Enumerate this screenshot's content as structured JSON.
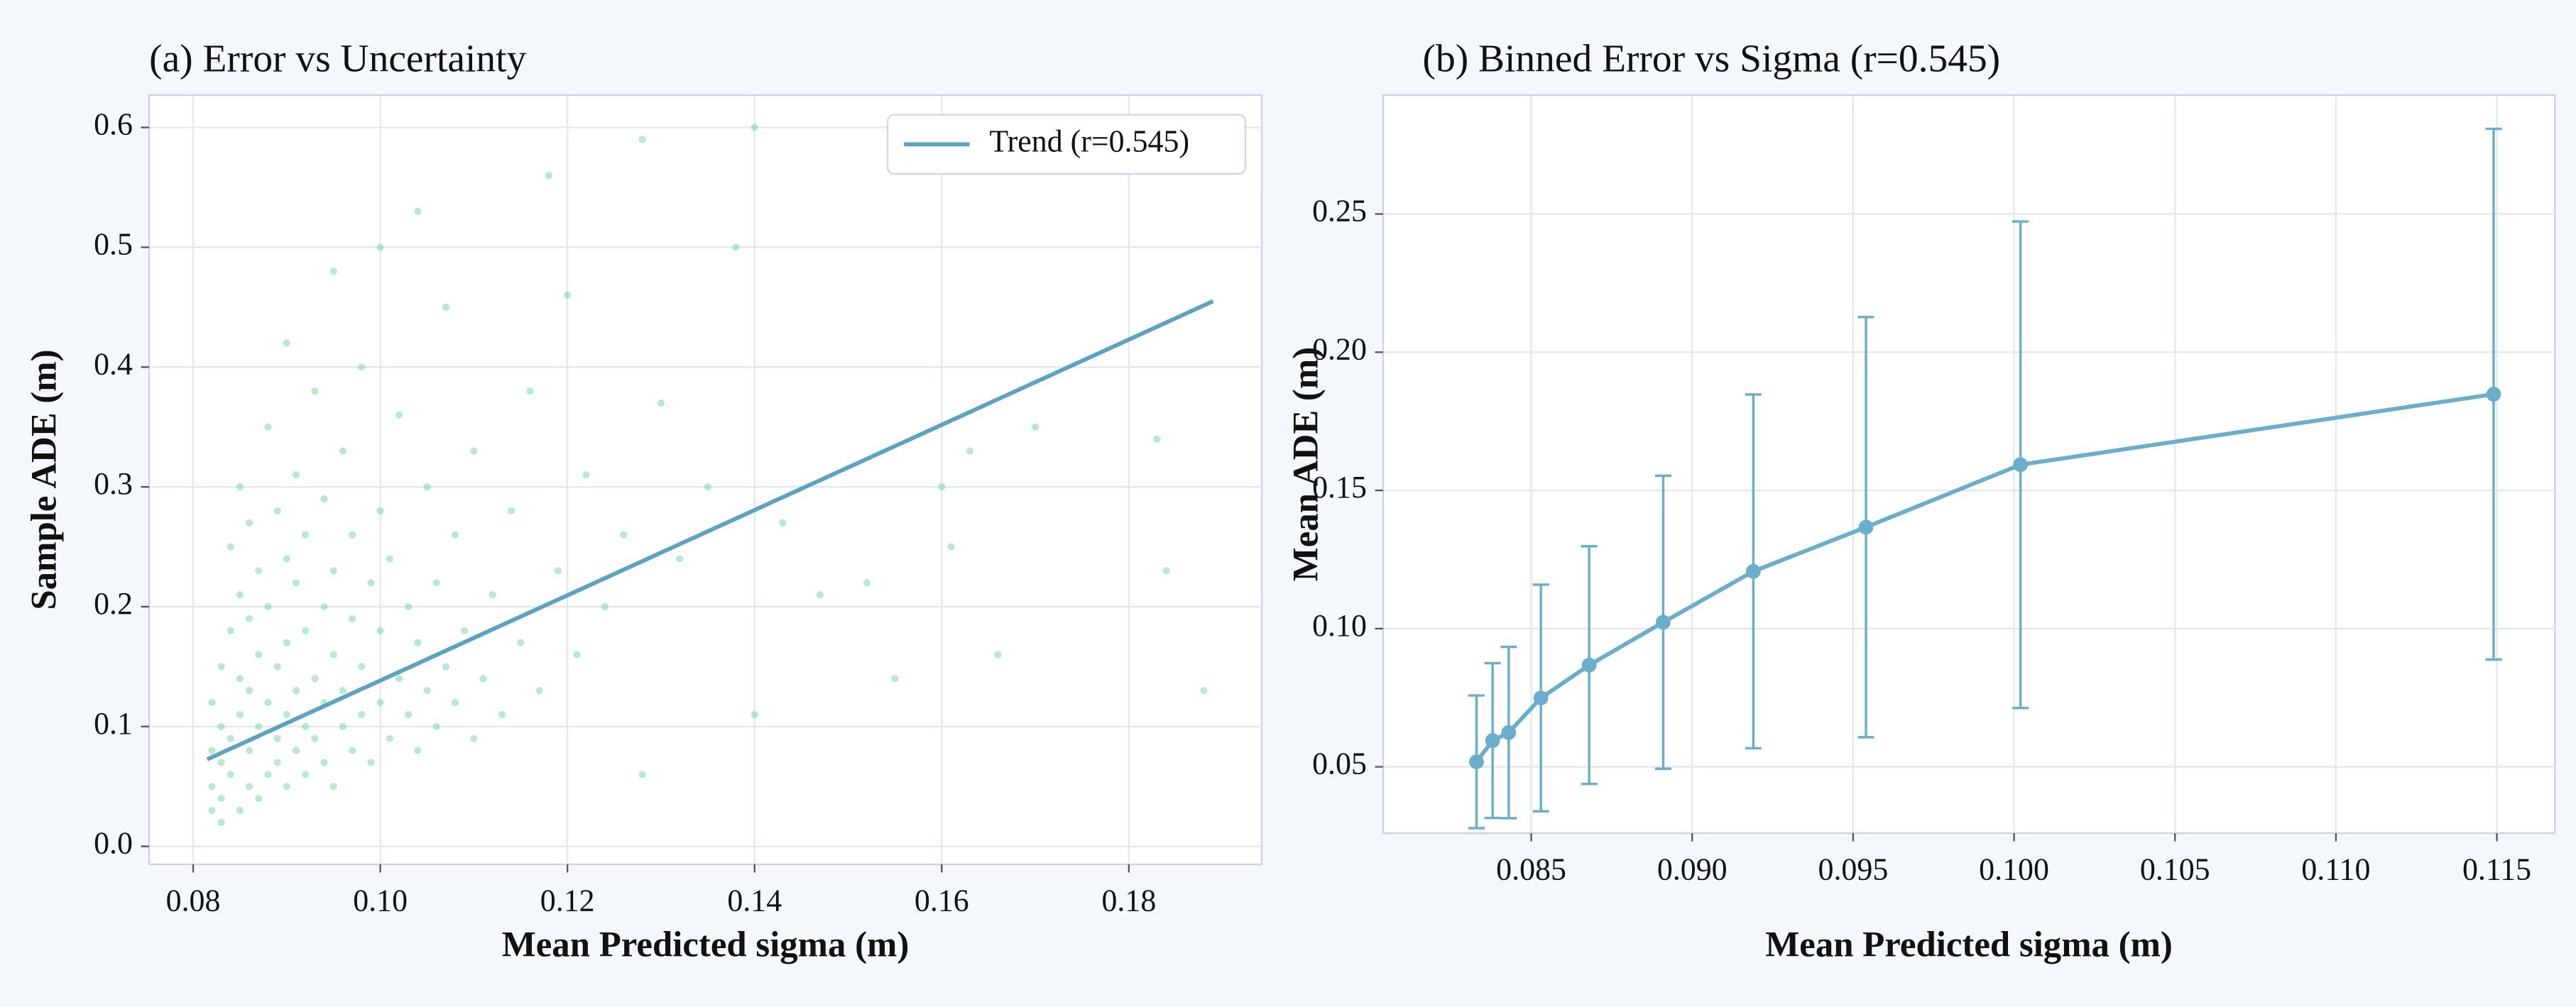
{
  "chart_data": [
    {
      "type": "scatter",
      "title": "(a) Error vs Uncertainty",
      "x_label": "Mean Predicted sigma (m)",
      "y_label": "Sample ADE (m)",
      "xlim": [
        0.0753,
        0.1942
      ],
      "ylim": [
        -0.015,
        0.627
      ],
      "xticks": [
        0.08,
        {
          "value": 0.1,
          "label": "0.10"
        },
        0.12,
        0.14,
        0.16,
        0.18
      ],
      "yticks": [
        {
          "value": 0,
          "label": "0.0"
        },
        0.1,
        0.2,
        0.3,
        0.4,
        0.5,
        0.6
      ],
      "grid": true,
      "legend": "upper right",
      "series": [
        {
          "color": "#5fcf94",
          "x": [
            0.082,
            0.082,
            0.082,
            0.082,
            0.083,
            0.083,
            0.083,
            0.083,
            0.083,
            0.084,
            0.084,
            0.084,
            0.084,
            0.085,
            0.085,
            0.085,
            0.085,
            0.085,
            0.086,
            0.086,
            0.086,
            0.086,
            0.086,
            0.087,
            0.087,
            0.087,
            0.087,
            0.088,
            0.088,
            0.088,
            0.088,
            0.089,
            0.089,
            0.089,
            0.089,
            0.09,
            0.09,
            0.09,
            0.09,
            0.09,
            0.091,
            0.091,
            0.091,
            0.091,
            0.092,
            0.092,
            0.092,
            0.092,
            0.093,
            0.093,
            0.093,
            0.094,
            0.094,
            0.094,
            0.094,
            0.095,
            0.095,
            0.095,
            0.095,
            0.096,
            0.096,
            0.096,
            0.097,
            0.097,
            0.097,
            0.098,
            0.098,
            0.098,
            0.099,
            0.099,
            0.1,
            0.1,
            0.1,
            0.1,
            0.101,
            0.101,
            0.102,
            0.102,
            0.103,
            0.103,
            0.104,
            0.104,
            0.104,
            0.105,
            0.105,
            0.106,
            0.106,
            0.107,
            0.107,
            0.108,
            0.108,
            0.109,
            0.11,
            0.11,
            0.111,
            0.112,
            0.113,
            0.114,
            0.115,
            0.116,
            0.117,
            0.118,
            0.119,
            0.12,
            0.121,
            0.122,
            0.124,
            0.126,
            0.128,
            0.128,
            0.13,
            0.132,
            0.135,
            0.138,
            0.14,
            0.14,
            0.143,
            0.147,
            0.152,
            0.155,
            0.16,
            0.161,
            0.163,
            0.166,
            0.17,
            0.183,
            0.184,
            0.188
          ],
          "values": [
            0.03,
            0.05,
            0.08,
            0.12,
            0.04,
            0.07,
            0.1,
            0.15,
            0.02,
            0.06,
            0.09,
            0.18,
            0.25,
            0.03,
            0.11,
            0.14,
            0.21,
            0.3,
            0.05,
            0.08,
            0.13,
            0.19,
            0.27,
            0.04,
            0.1,
            0.16,
            0.23,
            0.06,
            0.12,
            0.2,
            0.35,
            0.07,
            0.09,
            0.15,
            0.28,
            0.05,
            0.11,
            0.17,
            0.24,
            0.42,
            0.08,
            0.13,
            0.22,
            0.31,
            0.06,
            0.1,
            0.18,
            0.26,
            0.09,
            0.14,
            0.38,
            0.07,
            0.12,
            0.2,
            0.29,
            0.05,
            0.16,
            0.23,
            0.48,
            0.1,
            0.13,
            0.33,
            0.08,
            0.19,
            0.26,
            0.11,
            0.15,
            0.4,
            0.07,
            0.22,
            0.12,
            0.18,
            0.28,
            0.5,
            0.09,
            0.24,
            0.14,
            0.36,
            0.11,
            0.2,
            0.08,
            0.17,
            0.53,
            0.13,
            0.3,
            0.1,
            0.22,
            0.15,
            0.45,
            0.12,
            0.26,
            0.18,
            0.09,
            0.33,
            0.14,
            0.21,
            0.11,
            0.28,
            0.17,
            0.38,
            0.13,
            0.56,
            0.23,
            0.46,
            0.16,
            0.31,
            0.2,
            0.26,
            0.59,
            0.06,
            0.37,
            0.24,
            0.3,
            0.5,
            0.6,
            0.11,
            0.27,
            0.21,
            0.22,
            0.14,
            0.3,
            0.25,
            0.33,
            0.16,
            0.35,
            0.34,
            0.23,
            0.13
          ]
        },
        {
          "name": "Trend (r=0.545)",
          "type": "line",
          "color": "#5ba3c0",
          "x": [
            0.0815,
            0.189
          ],
          "values": [
            0.0726,
            0.455
          ]
        }
      ]
    },
    {
      "type": "line",
      "title": "(b) Binned Error vs Sigma (r=0.545)",
      "x_label": "Mean Predicted sigma (m)",
      "y_label": "Mean ADE (m)",
      "xlim": [
        0.0804,
        0.1168
      ],
      "ylim": [
        0.026,
        0.293
      ],
      "xticks": [
        0.085,
        {
          "value": 0.09,
          "label": "0.090"
        },
        0.095,
        {
          "value": 0.1,
          "label": "0.100"
        },
        0.105,
        {
          "value": 0.11,
          "label": "0.110"
        },
        0.115
      ],
      "yticks": [
        0.05,
        {
          "value": 0.1,
          "label": "0.10"
        },
        0.15,
        {
          "value": 0.2,
          "label": "0.20"
        },
        0.25
      ],
      "grid": true,
      "series": [
        {
          "color": "#6aaecb",
          "x": [
            0.0833,
            0.0838,
            0.0843,
            0.0853,
            0.0868,
            0.0891,
            0.0919,
            0.0954,
            0.1002,
            0.1149
          ],
          "values": [
            0.0518,
            0.0595,
            0.0624,
            0.0749,
            0.0868,
            0.1023,
            0.1207,
            0.1367,
            0.1593,
            0.1848
          ],
          "errors": [
            0.024,
            0.028,
            0.031,
            0.041,
            0.043,
            0.053,
            0.064,
            0.076,
            0.088,
            0.096
          ]
        }
      ]
    }
  ]
}
